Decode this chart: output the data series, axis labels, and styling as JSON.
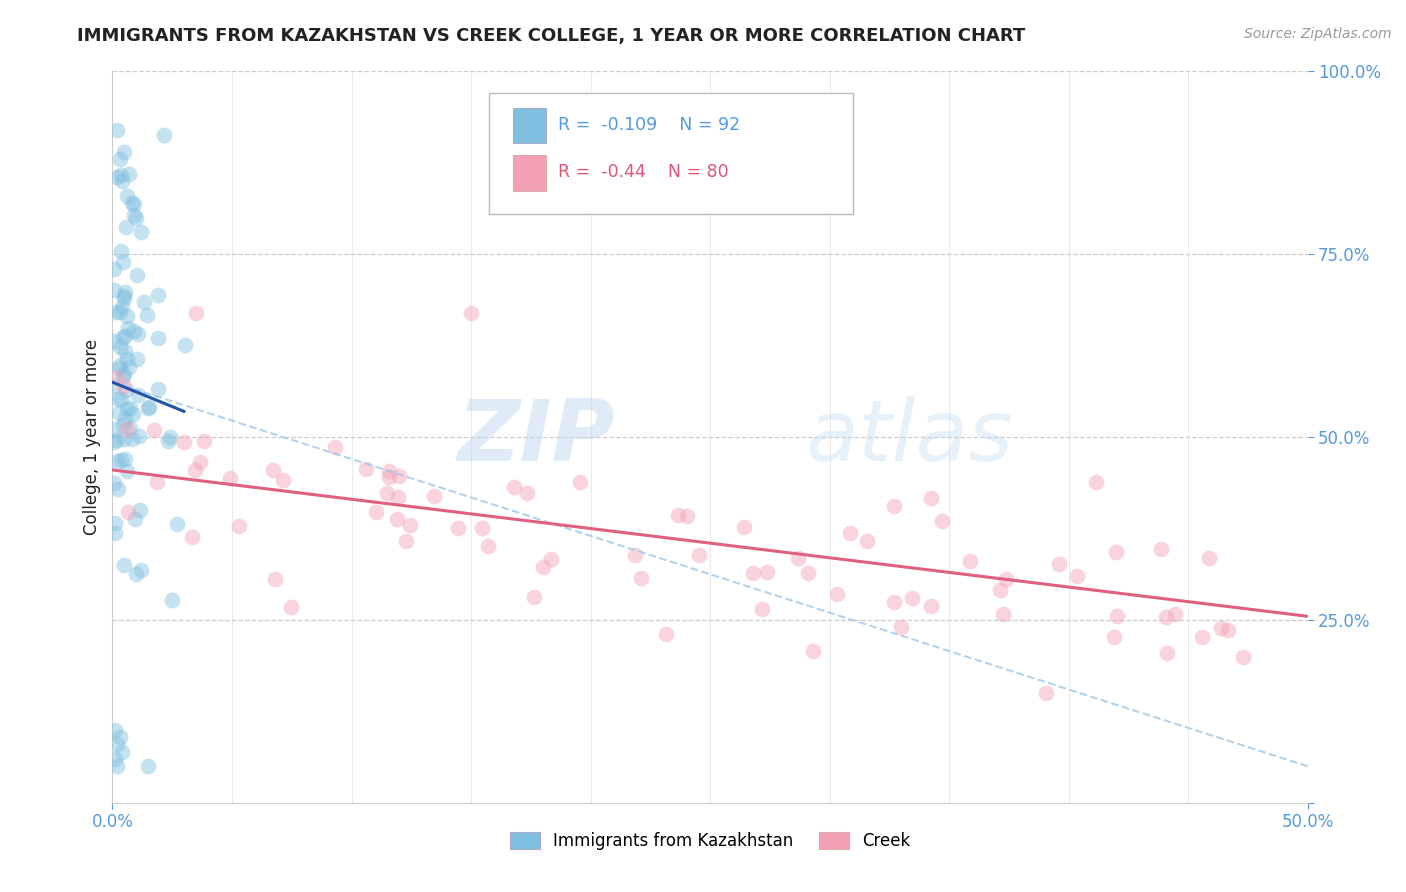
{
  "title": "IMMIGRANTS FROM KAZAKHSTAN VS CREEK COLLEGE, 1 YEAR OR MORE CORRELATION CHART",
  "source": "Source: ZipAtlas.com",
  "ylabel": "College, 1 year or more",
  "legend_label1": "Immigrants from Kazakhstan",
  "legend_label2": "Creek",
  "R1": -0.109,
  "N1": 92,
  "R2": -0.44,
  "N2": 80,
  "color_blue": "#7fbfdf",
  "color_pink": "#f4a0b5",
  "color_line_blue": "#2255aa",
  "color_line_pink": "#e06080",
  "color_dashed": "#a0c8e8",
  "watermark_zip": "ZIP",
  "watermark_atlas": "atlas",
  "background_color": "#ffffff",
  "grid_color": "#cccccc",
  "x_min": 0.0,
  "x_max": 0.5,
  "y_min": 0.0,
  "y_max": 1.0,
  "title_color": "#222222",
  "tick_color": "#5599dd",
  "legend_text_blue": "#5599dd",
  "legend_text_pink": "#dd5577"
}
